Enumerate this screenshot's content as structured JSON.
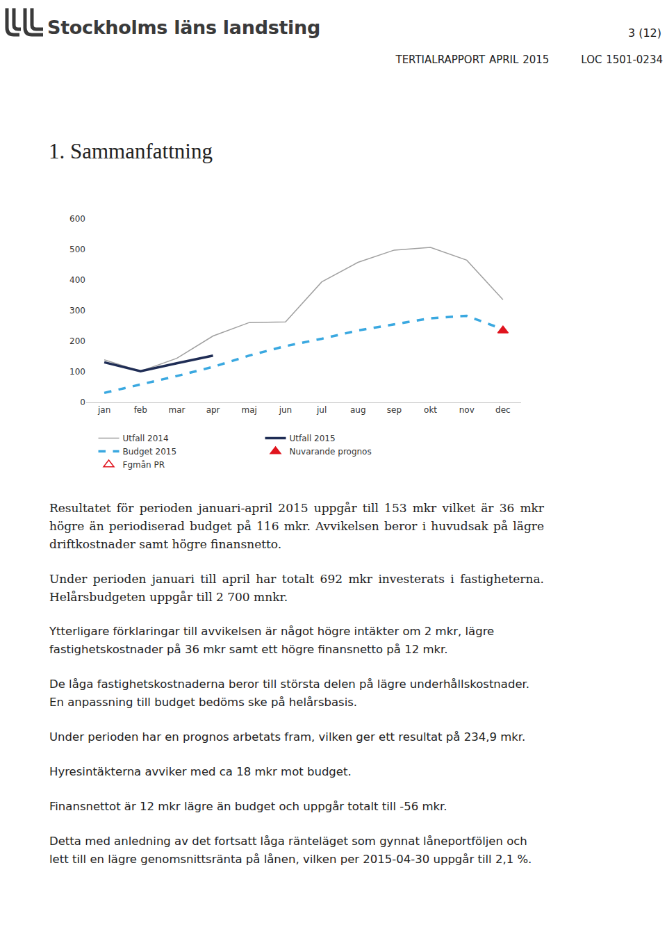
{
  "header": {
    "organization": "Stockholms läns landsting",
    "page": "3 (12)",
    "report": "TERTIALRAPPORT APRIL 2015",
    "reference": "LOC 1501-0234"
  },
  "title": "1. Sammanfattning",
  "chart_data": {
    "type": "line",
    "categories": [
      "jan",
      "feb",
      "mar",
      "apr",
      "maj",
      "jun",
      "jul",
      "aug",
      "sep",
      "okt",
      "nov",
      "dec"
    ],
    "ylim": [
      0,
      600
    ],
    "yticks": [
      0,
      100,
      200,
      300,
      400,
      500,
      600
    ],
    "grid": false,
    "legend": "bottom",
    "series": [
      {
        "name": "Utfall 2014",
        "color": "#a0a0a0",
        "line_style": "thin",
        "marker": "none",
        "values": [
          139,
          102,
          144,
          217,
          261,
          263,
          394,
          458,
          498,
          507,
          465,
          336
        ]
      },
      {
        "name": "Utfall 2015",
        "color": "#1f2d55",
        "line_style": "solid",
        "marker": "none",
        "values": [
          131,
          102,
          128,
          153,
          null,
          null,
          null,
          null,
          null,
          null,
          null,
          null
        ]
      },
      {
        "name": "Budget 2015",
        "color": "#3aa8e0",
        "line_style": "dashed",
        "marker": "none",
        "values": [
          31,
          58,
          86,
          116,
          153,
          184,
          208,
          235,
          255,
          275,
          283,
          239
        ]
      },
      {
        "name": "Nuvarande prognos",
        "color": "#e0141e",
        "line_style": "none",
        "marker": "triangle-up",
        "values": [
          null,
          null,
          null,
          null,
          null,
          null,
          null,
          null,
          null,
          null,
          null,
          234.9
        ]
      },
      {
        "name": "Fgmån PR",
        "color": "#e0141e",
        "line_style": "none",
        "marker": "triangle-up-open",
        "values": [
          null,
          null,
          null,
          null,
          null,
          null,
          null,
          null,
          null,
          null,
          null,
          null
        ]
      }
    ]
  },
  "paragraphs": [
    "Resultatet för perioden januari-april 2015 uppgår till 153 mkr vilket är 36 mkr högre än periodiserad budget på 116 mkr. Avvikelsen beror i huvudsak på lägre driftkostnader samt högre finansnetto.",
    "Under perioden januari till april har totalt 692 mkr investerats i fastigheterna. Helårsbudgeten uppgår till 2 700 mnkr.",
    "Ytterligare förklaringar till avvikelsen är något högre intäkter om 2 mkr, lägre fastighetskostnader på 36 mkr samt ett högre finansnetto på 12 mkr.",
    "De låga fastighetskostnaderna beror till största delen på lägre underhållskostnader. En anpassning till budget bedöms ske på helårsbasis.",
    "Under perioden har en prognos arbetats fram, vilken ger ett resultat på 234,9 mkr.",
    "Hyresintäkterna avviker med ca 18 mkr mot budget.",
    "Finansnettot är 12 mkr lägre än budget och uppgår totalt till -56 mkr.",
    "Detta med anledning av det fortsatt låga ränteläget som gynnat låneportföljen och lett till en lägre genomsnittsränta på lånen, vilken per 2015-04-30 uppgår till 2,1 %."
  ]
}
